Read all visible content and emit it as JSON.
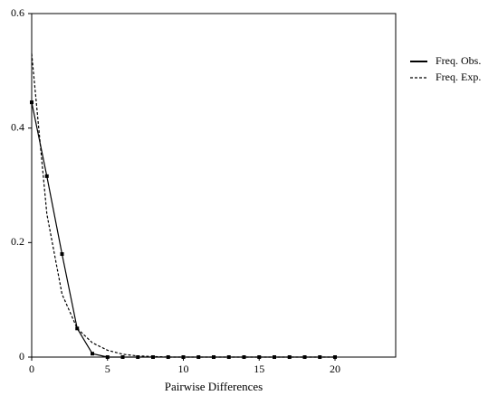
{
  "chart_data": {
    "type": "line",
    "xlabel": "Pairwise Differences",
    "x": [
      0,
      1,
      2,
      3,
      4,
      5,
      6,
      7,
      8,
      9,
      10,
      11,
      12,
      13,
      14,
      15,
      16,
      17,
      18,
      19,
      20
    ],
    "series": [
      {
        "name": "Freq. Obs.",
        "color": "#000000",
        "line_style": "solid",
        "markers": true,
        "values": [
          0.445,
          0.316,
          0.18,
          0.05,
          0.006,
          0,
          0,
          0,
          0,
          0,
          0,
          0,
          0,
          0,
          0,
          0,
          0,
          0,
          0,
          0,
          0
        ]
      },
      {
        "name": "Freq. Exp.",
        "color": "#000000",
        "line_style": "dashed",
        "markers": false,
        "values": [
          0.53,
          0.25,
          0.11,
          0.05,
          0.025,
          0.012,
          0.005,
          0.002,
          0.001,
          0,
          0,
          0,
          0,
          0,
          0,
          0,
          0,
          0,
          0,
          0,
          0
        ]
      }
    ],
    "xlim": [
      0,
      24
    ],
    "xticks": [
      0,
      5,
      10,
      15,
      20
    ],
    "ylim": [
      0,
      0.6
    ],
    "yticks": [
      0,
      0.2,
      0.4,
      0.6
    ],
    "legend": "right"
  }
}
